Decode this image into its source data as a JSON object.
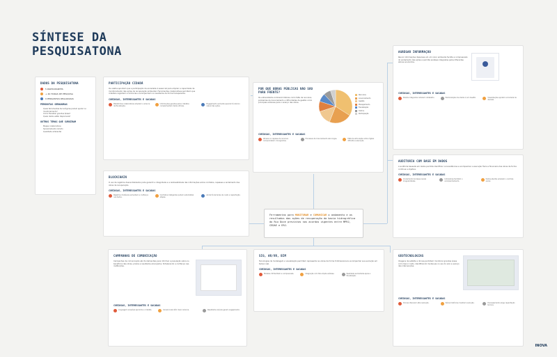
{
  "page": {
    "title": "SÍNTESE DA PESQUISATONA",
    "logo": "INOVA"
  },
  "participants": {
    "title": "DADOS DA PESQUISATONA",
    "items": [
      {
        "label": "5 PARTICIPANTES",
        "color": "#e05a3a"
      },
      {
        "label": "+ 40 HORAS DE PESQUISA",
        "color": "#f0a040"
      },
      {
        "label": "9 PERGUNTAS REALIZADAS",
        "color": "#4a7ab8"
      }
    ],
    "questions_title": "PERGUNTAS GERADORAS",
    "questions": [
      "Quais ferramentas tecnológicas podem ajudar no monitoramento?",
      "Como fiscalizar grandes áreas?",
      "Quais dados estão disponíveis?"
    ],
    "other_title": "OUTROS TEMAS QUE SURGIRAM",
    "other": [
      "Mapas colaborativos",
      "Sensoriamento remoto",
      "Qualidade ambiental"
    ]
  },
  "citizen": {
    "title": "PARTICIPAÇÃO CIDADÃ",
    "text": "Os relatos apontam que a participação da sociedade é essencial para ampliar a capacidade de monitoramento das ações de recuperação ambiental. Ferramentas colaborativas permitem que cidadãos registrem ocorrências e acompanhem os resultados de forma transparente.",
    "sub": "CURIOSAS, INTERESSANTES E SACADAS",
    "notes": [
      "Plataformas colaborativas ampliam o alcance da fiscalização.",
      "Informações geradas pelos cidadãos complementam dados oficiais.",
      "Engajamento aumenta quando há retorno visível das ações."
    ]
  },
  "pie": {
    "title": "POR QUE OBRAS PÚBLICAS NÃO SÃO PARA FRENTE?",
    "text": "Os entrevistados indicaram fatores como falta de recursos, problemas de licenciamento e dificuldades de gestão como principais entraves para o avanço das obras.",
    "sub": "CURIOSAS, INTERESSANTES E SACADAS",
    "notes": [
      "Atrasos no repasse de recursos comprometem cronogramas.",
      "Processos de licenciamento são longos.",
      "Falta de articulação entre órgãos dificulta a execução."
    ]
  },
  "chart_data": {
    "type": "pie",
    "categories": [
      "Recursos",
      "Licenciamento",
      "Gestão",
      "Planejamento",
      "Fiscalização",
      "Outros",
      "Participação"
    ],
    "values": [
      34,
      22,
      14,
      10,
      8,
      7,
      5
    ],
    "colors": [
      "#f0c070",
      "#e8a050",
      "#f0c890",
      "#e08040",
      "#5a8ac8",
      "#9a9a9a",
      "#d0d0d0"
    ]
  },
  "blockchain": {
    "title": "BLOCKCHAIN",
    "text": "O uso de registros descentralizados pode garantir a integridade e a rastreabilidade das informações sobre contratos, repasses e andamento das obras de recuperação.",
    "sub": "CURIOSAS, INTERESSANTES E SACADAS",
    "notes": [
      "Registros imutáveis aumentam a confiança nos dados.",
      "Contratos inteligentes podem automatizar etapas.",
      "Ainda há barreiras de custo e capacitação."
    ]
  },
  "center": {
    "part1": "Ferramentas para ",
    "mon": "MONITORAR",
    "part2": " e ",
    "com": "COMUNICAR",
    "part3": " o andamento e os resultados das ações de recuperação da bacia hidrográfica do Rio Doce previstas nos acordos vigentes entre MPRJ, CEDAE e ERJ."
  },
  "aggregate": {
    "title": "AGREGAR INFORMAÇÃO",
    "text": "Reunir informações dispersas em um único ambiente facilita a compreensão do andamento das ações e permite análises integradas pelos diferentes atores envolvidos.",
    "sub": "CURIOSAS, INTERESSANTES E SACADAS",
    "notes": [
      "Painéis integrados reduzem retrabalho.",
      "Padronização dos dados é um desafio.",
      "Visualizações ajudam na tomada de decisão."
    ]
  },
  "audit": {
    "title": "AUDITORIA COM BASE EM DADOS",
    "text": "A auditoria baseada em dados permite identificar inconsistências e acompanhar a execução física e financeira das obras de forma contínua e objetiva.",
    "sub": "CURIOSAS, INTERESSANTES E SACADAS",
    "notes": [
      "Cruzamento de bases revela irregularidades.",
      "Indicadores facilitam o acompanhamento.",
      "Dados abertos ampliam o controle social."
    ]
  },
  "campaign": {
    "title": "CAMPANHAS DE COMUNICAÇÃO",
    "text": "Campanhas de comunicação são fundamentais para informar a população sobre os benefícios das obras, prazos e resultados alcançados, fortalecendo a confiança nas instituições.",
    "sub": "CURIOSAS, INTERESSANTES E SACADAS",
    "notes": [
      "Linguagem acessível aproxima o cidadão.",
      "Canais locais têm maior alcance.",
      "Resultados visíveis geram engajamento."
    ]
  },
  "bim": {
    "title": "SIG, AR/VR, BIM",
    "text": "Tecnologias de modelagem e visualização permitem representar as obras de forma tridimensional e acompanhar sua evolução em tempo real.",
    "sub": "CURIOSAS, INTERESSANTES E SACADAS",
    "notes": [
      "Modelos 3D facilitam a compreensão.",
      "Integração com SIG amplia análises.",
      "Realidade aumentada apoia a fiscalização."
    ]
  },
  "geo": {
    "title": "GEOTECNOLOGIAS",
    "text": "Imagens de satélite e drones permitem monitorar grandes áreas com menor custo, identificando mudanças no uso do solo e avanço das intervenções.",
    "sub": "CURIOSAS, INTERESSANTES E SACADAS",
    "notes": [
      "Drones oferecem alta resolução.",
      "Séries históricas mostram evolução.",
      "Processamento exige capacitação técnica."
    ]
  }
}
